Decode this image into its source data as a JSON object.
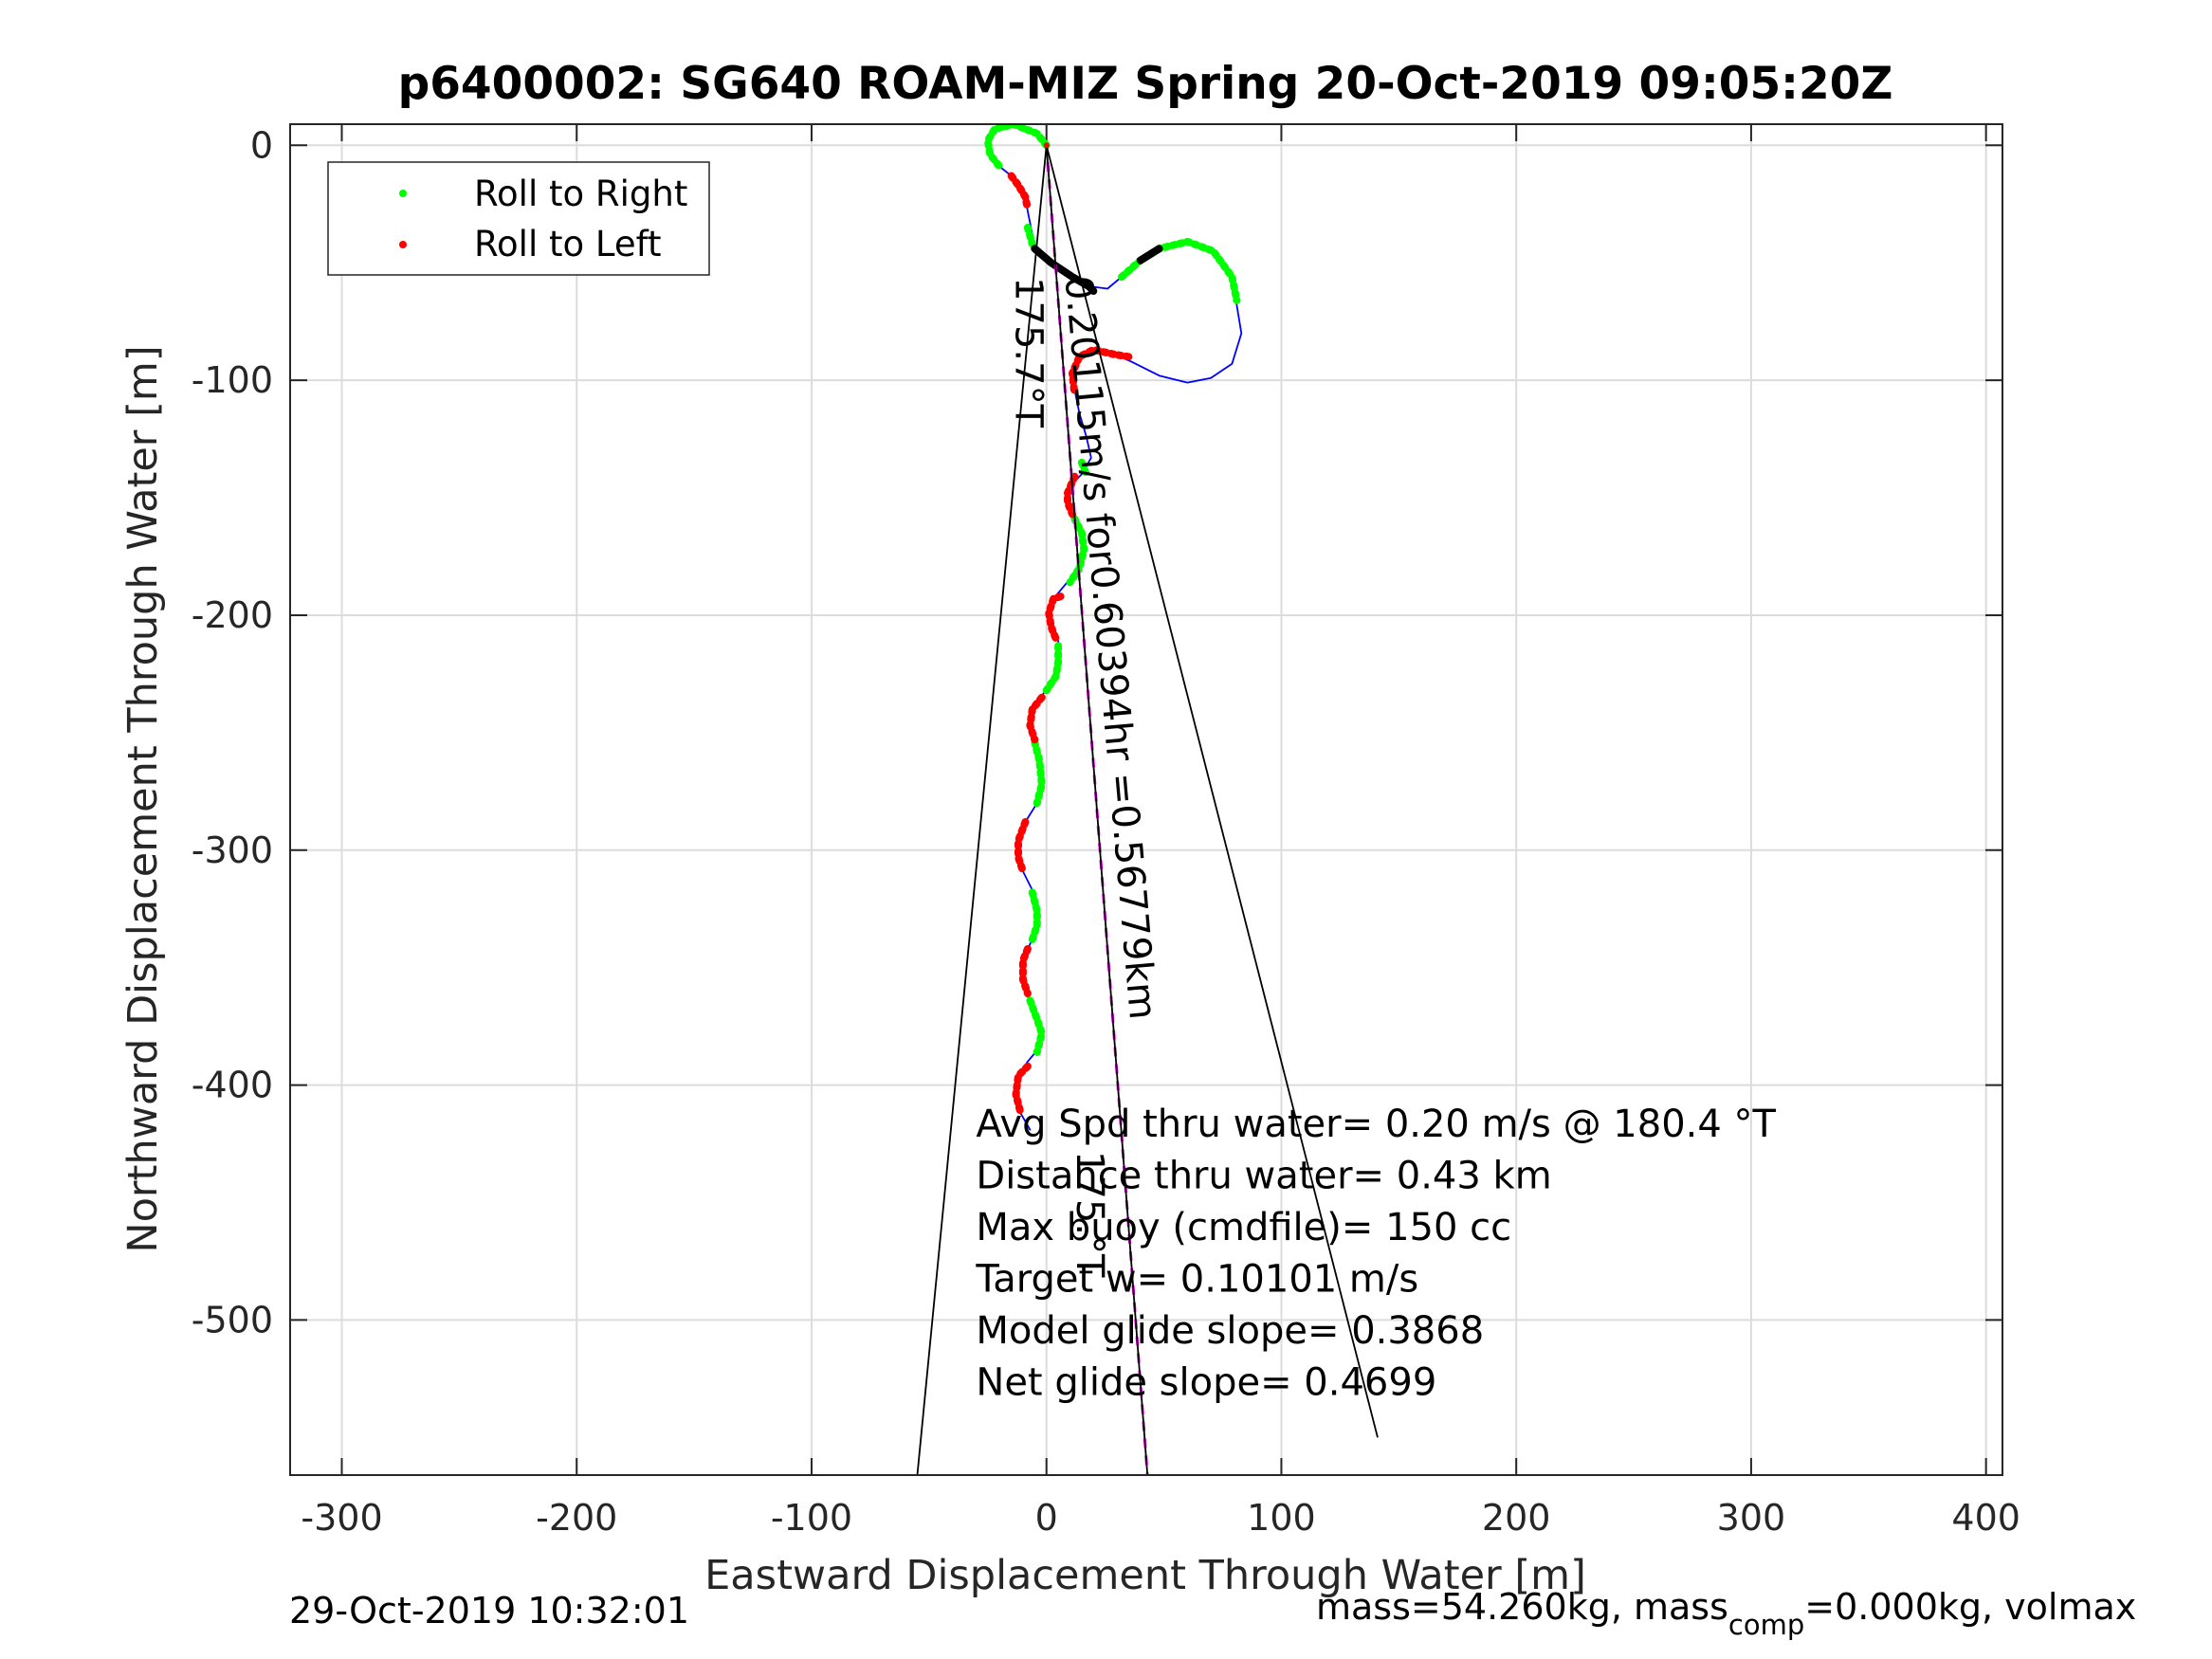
{
  "chart_data": {
    "type": "line",
    "title": "p6400002: SG640 ROAM-MIZ Spring 20-Oct-2019 09:05:20Z",
    "xlabel": "Eastward Displacement Through Water [m]",
    "ylabel": "Northward Displacement Through Water [m]",
    "xlim": [
      -322,
      407
    ],
    "ylim": [
      -566,
      9
    ],
    "xticks": [
      -300,
      -200,
      -100,
      0,
      100,
      200,
      300,
      400
    ],
    "yticks": [
      -500,
      -400,
      -300,
      -200,
      -100,
      0
    ],
    "xtick_labels": [
      "-300",
      "-200",
      "-100",
      "0",
      "100",
      "200",
      "300",
      "400"
    ],
    "ytick_labels": [
      "-500",
      "-400",
      "-300",
      "-200",
      "-100",
      "0"
    ],
    "grid": true,
    "legend_position": "top-left",
    "legend": [
      {
        "label": "Roll to Right",
        "color": "#00ff00"
      },
      {
        "label": "Roll to Left",
        "color": "#ff0000"
      }
    ],
    "colors": {
      "track": "#0000ff",
      "right": "#00ff00",
      "left": "#ff0000",
      "heading": "#ff00ff",
      "black": "#000000"
    },
    "series": [
      {
        "color": "#0000ff",
        "points": [
          [
            0,
            0
          ],
          [
            -4,
            5
          ],
          [
            -14,
            9
          ],
          [
            -22,
            7
          ],
          [
            -25,
            2
          ],
          [
            -24,
            -4
          ],
          [
            -20,
            -9
          ],
          [
            -15,
            -13
          ],
          [
            -12,
            -17
          ],
          [
            -9,
            -22
          ],
          [
            -8,
            -28
          ],
          [
            -7,
            -33
          ],
          [
            -6,
            -38
          ],
          [
            -5,
            -44
          ],
          [
            2,
            -50
          ],
          [
            11,
            -56
          ],
          [
            18,
            -60
          ],
          [
            26,
            -61
          ],
          [
            32,
            -56
          ],
          [
            40,
            -49
          ],
          [
            48,
            -44
          ],
          [
            60,
            -41
          ],
          [
            71,
            -45
          ],
          [
            79,
            -56
          ],
          [
            81,
            -68
          ],
          [
            83,
            -80
          ],
          [
            79,
            -93
          ],
          [
            70,
            -99
          ],
          [
            60,
            -101
          ],
          [
            48,
            -98
          ],
          [
            36,
            -92
          ],
          [
            29,
            -89
          ],
          [
            20,
            -87
          ],
          [
            14,
            -90
          ],
          [
            11,
            -97
          ],
          [
            12,
            -104
          ],
          [
            14,
            -114
          ],
          [
            17,
            -124
          ],
          [
            19,
            -133
          ],
          [
            15,
            -140
          ],
          [
            10,
            -145
          ],
          [
            9,
            -152
          ],
          [
            11,
            -159
          ],
          [
            14,
            -165
          ],
          [
            16,
            -172
          ],
          [
            14,
            -180
          ],
          [
            8,
            -187
          ],
          [
            3,
            -193
          ],
          [
            1,
            -199
          ],
          [
            2,
            -205
          ],
          [
            5,
            -211
          ],
          [
            5,
            -219
          ],
          [
            4,
            -225
          ],
          [
            -1,
            -233
          ],
          [
            -6,
            -240
          ],
          [
            -7,
            -247
          ],
          [
            -5,
            -253
          ],
          [
            -3,
            -263
          ],
          [
            -2,
            -272
          ],
          [
            -4,
            -280
          ],
          [
            -9,
            -288
          ],
          [
            -12,
            -296
          ],
          [
            -12,
            -303
          ],
          [
            -10,
            -309
          ],
          [
            -6,
            -317
          ],
          [
            -4,
            -326
          ],
          [
            -4,
            -332
          ],
          [
            -7,
            -340
          ],
          [
            -10,
            -347
          ],
          [
            -10,
            -355
          ],
          [
            -8,
            -362
          ],
          [
            -5,
            -370
          ],
          [
            -2,
            -378
          ],
          [
            -3,
            -384
          ],
          [
            -8,
            -390
          ],
          [
            -12,
            -396
          ],
          [
            -13,
            -404
          ],
          [
            -11,
            -412
          ],
          [
            -7,
            -419
          ]
        ]
      },
      {
        "name": "Roll to Right",
        "color": "#00ff00",
        "segments": [
          [
            [
              0,
              0
            ],
            [
              -4,
              5
            ],
            [
              -14,
              9
            ],
            [
              -22,
              7
            ],
            [
              -25,
              2
            ],
            [
              -24,
              -4
            ],
            [
              -20,
              -9
            ]
          ],
          [
            [
              -8,
              -35
            ],
            [
              -6,
              -42
            ]
          ],
          [
            [
              32,
              -56
            ],
            [
              40,
              -49
            ],
            [
              48,
              -44
            ],
            [
              60,
              -41
            ],
            [
              71,
              -45
            ],
            [
              79,
              -56
            ],
            [
              81,
              -66
            ]
          ],
          [
            [
              15,
              -135
            ],
            [
              17,
              -140
            ]
          ],
          [
            [
              12,
              -159
            ],
            [
              15,
              -165
            ],
            [
              16,
              -172
            ],
            [
              14,
              -180
            ],
            [
              10,
              -186
            ]
          ],
          [
            [
              5,
              -213
            ],
            [
              5,
              -220
            ],
            [
              4,
              -226
            ],
            [
              0,
              -232
            ]
          ],
          [
            [
              -5,
              -254
            ],
            [
              -3,
              -262
            ],
            [
              -2,
              -272
            ],
            [
              -4,
              -280
            ]
          ],
          [
            [
              -6,
              -318
            ],
            [
              -4,
              -326
            ],
            [
              -4,
              -332
            ],
            [
              -6,
              -338
            ]
          ],
          [
            [
              -7,
              -364
            ],
            [
              -4,
              -372
            ],
            [
              -2,
              -378
            ],
            [
              -4,
              -386
            ]
          ]
        ]
      },
      {
        "name": "Roll to Left",
        "color": "#ff0000",
        "segments": [
          [
            [
              -15,
              -13
            ],
            [
              -12,
              -17
            ],
            [
              -9,
              -22
            ],
            [
              -8,
              -27
            ]
          ],
          [
            [
              35,
              -90
            ],
            [
              29,
              -89
            ],
            [
              20,
              -87
            ],
            [
              14,
              -90
            ],
            [
              11,
              -97
            ],
            [
              12,
              -106
            ]
          ],
          [
            [
              12,
              -141
            ],
            [
              9,
              -148
            ],
            [
              9,
              -152
            ],
            [
              11,
              -157
            ]
          ],
          [
            [
              6,
              -192
            ],
            [
              3,
              -193
            ],
            [
              1,
              -199
            ],
            [
              2,
              -205
            ],
            [
              4,
              -210
            ]
          ],
          [
            [
              -2,
              -235
            ],
            [
              -6,
              -240
            ],
            [
              -7,
              -247
            ],
            [
              -5,
              -253
            ]
          ],
          [
            [
              -9,
              -288
            ],
            [
              -12,
              -296
            ],
            [
              -12,
              -303
            ],
            [
              -10,
              -309
            ]
          ],
          [
            [
              -8,
              -342
            ],
            [
              -10,
              -347
            ],
            [
              -10,
              -355
            ],
            [
              -8,
              -361
            ]
          ],
          [
            [
              -8,
              -392
            ],
            [
              -12,
              -396
            ],
            [
              -13,
              -404
            ],
            [
              -11,
              -412
            ]
          ]
        ]
      },
      {
        "color": "#000000",
        "segments": [
          [
            [
              -5,
              -44
            ],
            [
              2,
              -50
            ],
            [
              11,
              -56
            ],
            [
              18,
              -60
            ],
            [
              20,
              -62
            ]
          ],
          [
            [
              40,
              -49
            ],
            [
              48,
              -44
            ]
          ]
        ]
      },
      {
        "color": "#ff00ff",
        "style": "dashed",
        "points": [
          [
            0,
            0
          ],
          [
            43,
            -566
          ]
        ]
      },
      {
        "color": "#000000",
        "points": [
          [
            0,
            0
          ],
          [
            43,
            -566
          ]
        ]
      },
      {
        "color": "#000000",
        "points": [
          [
            0,
            0
          ],
          [
            -55,
            -566
          ]
        ]
      },
      {
        "color": "#000000",
        "points": [
          [
            0,
            0
          ],
          [
            141,
            -550
          ]
        ]
      }
    ],
    "annotations": [
      {
        "text": "175.7°T",
        "x": -13,
        "y": -56,
        "angle": 90
      },
      {
        "text": "0.20115m/s for0.60394hr =0.56779km",
        "x": 8,
        "y": -56,
        "angle": 85
      },
      {
        "text": "175.°T",
        "x": 13,
        "y": -428,
        "angle": 90
      },
      {
        "text": "Avg Spd thru water=  0.20 m/s @ 180.4 °T",
        "x": -30,
        "y": -422,
        "angle": 0
      },
      {
        "text": "Distance thru water=  0.43 km",
        "x": -30,
        "y": -444,
        "angle": 0
      },
      {
        "text": "Max buoy (cmdfile)= 150 cc",
        "x": -30,
        "y": -466,
        "angle": 0
      },
      {
        "text": "Target w= 0.10101 m/s",
        "x": -30,
        "y": -488,
        "angle": 0
      },
      {
        "text": "Model glide slope= 0.3868",
        "x": -30,
        "y": -510,
        "angle": 0
      },
      {
        "text": "Net glide slope= 0.4699",
        "x": -30,
        "y": -532,
        "angle": 0
      }
    ]
  },
  "footer": {
    "timestamp": "29-Oct-2019 10:32:01",
    "mass_prefix": "mass=54.260kg, mass",
    "mass_sub": "comp",
    "mass_suffix": "=0.000kg, volmax"
  }
}
